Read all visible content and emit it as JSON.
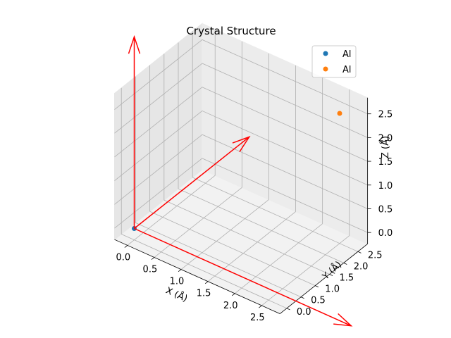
{
  "chart_data": {
    "type": "scatter",
    "title": "Crystal Structure",
    "xlabel": "X (Å)",
    "ylabel": "Y (Å)",
    "zlabel": "Z (Å)",
    "x_ticks": [
      "0.0",
      "0.5",
      "1.0",
      "1.5",
      "2.0",
      "2.5"
    ],
    "y_ticks": [
      "0.0",
      "0.5",
      "1.0",
      "1.5",
      "2.0",
      "2.5"
    ],
    "z_ticks": [
      "0.0",
      "0.5",
      "1.0",
      "1.5",
      "2.0",
      "2.5"
    ],
    "xlim": [
      0,
      2.6
    ],
    "ylim": [
      0,
      2.6
    ],
    "zlim": [
      0,
      2.6
    ],
    "grid": true,
    "legend_position": "top-right",
    "series": [
      {
        "name": "Al",
        "color": "#1f77b4",
        "points": [
          {
            "x": 0,
            "y": 0,
            "z": 0
          }
        ]
      },
      {
        "name": "Al",
        "color": "#ff7f0e",
        "points": [
          {
            "x": 2.5,
            "y": 2.5,
            "z": 2.5
          }
        ]
      }
    ],
    "vectors": {
      "color": "#ff0000",
      "items": [
        {
          "name": "lattice-vector-a",
          "from": [
            0,
            0,
            0
          ],
          "to": [
            4.04,
            0,
            0
          ]
        },
        {
          "name": "lattice-vector-b",
          "from": [
            0,
            0,
            0
          ],
          "to": [
            0,
            4.04,
            0
          ]
        },
        {
          "name": "lattice-vector-c",
          "from": [
            0,
            0,
            0
          ],
          "to": [
            0,
            0,
            4.04
          ]
        }
      ]
    }
  }
}
